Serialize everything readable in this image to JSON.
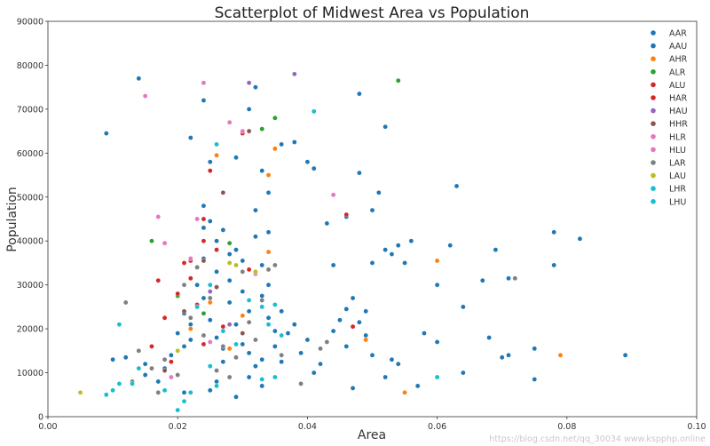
{
  "chart_data": {
    "type": "scatter",
    "title": "Scatterplot of Midwest Area vs Population",
    "xlabel": "Area",
    "ylabel": "Population",
    "xlim": [
      0.0,
      0.1
    ],
    "ylim": [
      0,
      90000
    ],
    "x_ticks": [
      "0.00",
      "0.02",
      "0.04",
      "0.06",
      "0.08",
      "0.10"
    ],
    "y_ticks": [
      "0",
      "10000",
      "20000",
      "30000",
      "40000",
      "50000",
      "60000",
      "70000",
      "80000",
      "90000"
    ],
    "grid": false,
    "legend_position": "top-right",
    "series": [
      {
        "name": "AAR",
        "color": "#1f77b4",
        "points": [
          [
            0.009,
            64500
          ],
          [
            0.014,
            77000
          ],
          [
            0.022,
            63500
          ],
          [
            0.024,
            72000
          ],
          [
            0.025,
            58000
          ],
          [
            0.029,
            59000
          ],
          [
            0.031,
            70000
          ],
          [
            0.032,
            75000
          ],
          [
            0.033,
            56000
          ],
          [
            0.034,
            51000
          ],
          [
            0.036,
            62000
          ],
          [
            0.038,
            62500
          ],
          [
            0.04,
            58000
          ],
          [
            0.041,
            56500
          ],
          [
            0.043,
            44000
          ],
          [
            0.044,
            34500
          ],
          [
            0.046,
            45500
          ],
          [
            0.047,
            27000
          ],
          [
            0.048,
            73500
          ],
          [
            0.048,
            55500
          ],
          [
            0.05,
            47000
          ],
          [
            0.05,
            35000
          ],
          [
            0.051,
            51000
          ],
          [
            0.052,
            66000
          ],
          [
            0.052,
            38000
          ],
          [
            0.053,
            37000
          ],
          [
            0.054,
            39000
          ],
          [
            0.055,
            35000
          ],
          [
            0.056,
            40000
          ],
          [
            0.058,
            19000
          ],
          [
            0.06,
            30000
          ],
          [
            0.06,
            17000
          ],
          [
            0.062,
            39000
          ],
          [
            0.063,
            52500
          ],
          [
            0.064,
            25000
          ],
          [
            0.067,
            31000
          ],
          [
            0.068,
            18000
          ],
          [
            0.069,
            38000
          ],
          [
            0.07,
            13500
          ],
          [
            0.071,
            31500
          ],
          [
            0.075,
            15500
          ],
          [
            0.075,
            8500
          ],
          [
            0.078,
            42000
          ],
          [
            0.078,
            34500
          ],
          [
            0.082,
            40500
          ],
          [
            0.089,
            14000
          ],
          [
            0.01,
            13000
          ],
          [
            0.012,
            13500
          ],
          [
            0.015,
            9500
          ],
          [
            0.018,
            11000
          ],
          [
            0.02,
            19000
          ],
          [
            0.021,
            16000
          ],
          [
            0.022,
            21000
          ],
          [
            0.023,
            25500
          ],
          [
            0.024,
            36000
          ],
          [
            0.024,
            48000
          ],
          [
            0.025,
            44500
          ],
          [
            0.026,
            33000
          ],
          [
            0.027,
            42500
          ],
          [
            0.028,
            31000
          ],
          [
            0.029,
            38000
          ],
          [
            0.03,
            28500
          ],
          [
            0.031,
            24000
          ],
          [
            0.032,
            41000
          ],
          [
            0.033,
            34500
          ],
          [
            0.034,
            30000
          ],
          [
            0.035,
            19500
          ],
          [
            0.036,
            24000
          ],
          [
            0.039,
            14500
          ],
          [
            0.042,
            12000
          ],
          [
            0.045,
            22000
          ],
          [
            0.048,
            21500
          ],
          [
            0.049,
            24000
          ],
          [
            0.052,
            9000
          ],
          [
            0.053,
            13000
          ],
          [
            0.057,
            7000
          ],
          [
            0.06,
            9000
          ],
          [
            0.064,
            10000
          ],
          [
            0.071,
            14000
          ],
          [
            0.047,
            6500
          ],
          [
            0.029,
            4500
          ],
          [
            0.026,
            8000
          ],
          [
            0.022,
            17500
          ],
          [
            0.023,
            34000
          ],
          [
            0.03,
            16500
          ],
          [
            0.033,
            13000
          ],
          [
            0.037,
            19000
          ],
          [
            0.041,
            10000
          ],
          [
            0.046,
            24500
          ],
          [
            0.05,
            14000
          ]
        ]
      },
      {
        "name": "AAU",
        "color": "#1f77b4",
        "points": [
          [
            0.015,
            12000
          ],
          [
            0.017,
            8000
          ],
          [
            0.019,
            14000
          ],
          [
            0.021,
            23500
          ],
          [
            0.023,
            30000
          ],
          [
            0.024,
            27000
          ],
          [
            0.025,
            22000
          ],
          [
            0.026,
            18000
          ],
          [
            0.027,
            15500
          ],
          [
            0.028,
            26000
          ],
          [
            0.029,
            21000
          ],
          [
            0.03,
            19000
          ],
          [
            0.031,
            14500
          ],
          [
            0.032,
            11500
          ],
          [
            0.033,
            27500
          ],
          [
            0.034,
            22500
          ],
          [
            0.035,
            16000
          ],
          [
            0.036,
            12500
          ],
          [
            0.038,
            21000
          ],
          [
            0.04,
            17500
          ],
          [
            0.044,
            19500
          ],
          [
            0.046,
            16000
          ],
          [
            0.049,
            18500
          ],
          [
            0.054,
            12000
          ],
          [
            0.024,
            43000
          ],
          [
            0.026,
            40000
          ],
          [
            0.028,
            37000
          ],
          [
            0.03,
            35500
          ],
          [
            0.032,
            47000
          ],
          [
            0.034,
            42000
          ],
          [
            0.021,
            5500
          ],
          [
            0.025,
            6000
          ],
          [
            0.027,
            12500
          ],
          [
            0.031,
            9000
          ],
          [
            0.033,
            7000
          ]
        ]
      },
      {
        "name": "AHR",
        "color": "#ff7f0e",
        "points": [
          [
            0.026,
            59500
          ],
          [
            0.035,
            61000
          ],
          [
            0.034,
            55000
          ],
          [
            0.034,
            37500
          ],
          [
            0.06,
            35500
          ],
          [
            0.049,
            17500
          ],
          [
            0.055,
            5500
          ],
          [
            0.079,
            14000
          ],
          [
            0.025,
            26000
          ],
          [
            0.03,
            23000
          ],
          [
            0.022,
            20000
          ],
          [
            0.028,
            15500
          ]
        ]
      },
      {
        "name": "ALR",
        "color": "#2ca02c",
        "points": [
          [
            0.033,
            65500
          ],
          [
            0.035,
            68000
          ],
          [
            0.054,
            76500
          ],
          [
            0.016,
            40000
          ],
          [
            0.02,
            27500
          ],
          [
            0.024,
            23500
          ],
          [
            0.028,
            39500
          ]
        ]
      },
      {
        "name": "ALU",
        "color": "#d62728",
        "points": [
          [
            0.025,
            56000
          ],
          [
            0.03,
            64500
          ],
          [
            0.024,
            40000
          ],
          [
            0.021,
            35000
          ],
          [
            0.022,
            31500
          ],
          [
            0.017,
            31000
          ],
          [
            0.018,
            22500
          ],
          [
            0.023,
            25500
          ],
          [
            0.026,
            38000
          ],
          [
            0.046,
            46000
          ],
          [
            0.047,
            20500
          ]
        ]
      },
      {
        "name": "HAR",
        "color": "#d62728",
        "points": [
          [
            0.024,
            45000
          ],
          [
            0.022,
            35500
          ],
          [
            0.02,
            28000
          ],
          [
            0.024,
            16500
          ],
          [
            0.016,
            16000
          ],
          [
            0.027,
            20500
          ],
          [
            0.031,
            33500
          ],
          [
            0.019,
            12500
          ]
        ]
      },
      {
        "name": "HAU",
        "color": "#9467bd",
        "points": [
          [
            0.031,
            76000
          ],
          [
            0.038,
            78000
          ],
          [
            0.025,
            28500
          ],
          [
            0.028,
            21000
          ]
        ]
      },
      {
        "name": "HHR",
        "color": "#8c564b",
        "points": [
          [
            0.031,
            65000
          ],
          [
            0.027,
            51000
          ],
          [
            0.024,
            35500
          ],
          [
            0.021,
            24000
          ],
          [
            0.026,
            29500
          ],
          [
            0.03,
            19000
          ],
          [
            0.018,
            10500
          ]
        ]
      },
      {
        "name": "HLR",
        "color": "#e377c2",
        "points": [
          [
            0.015,
            73000
          ],
          [
            0.024,
            76000
          ],
          [
            0.028,
            67000
          ],
          [
            0.017,
            45500
          ],
          [
            0.023,
            45000
          ],
          [
            0.044,
            50500
          ],
          [
            0.032,
            32500
          ]
        ]
      },
      {
        "name": "HLU",
        "color": "#e377c2",
        "points": [
          [
            0.018,
            39500
          ],
          [
            0.022,
            36000
          ],
          [
            0.03,
            65000
          ],
          [
            0.019,
            9000
          ],
          [
            0.025,
            17000
          ]
        ]
      },
      {
        "name": "LAR",
        "color": "#7f7f7f",
        "points": [
          [
            0.012,
            26000
          ],
          [
            0.014,
            15000
          ],
          [
            0.016,
            11000
          ],
          [
            0.018,
            13000
          ],
          [
            0.02,
            9500
          ],
          [
            0.021,
            30000
          ],
          [
            0.022,
            22500
          ],
          [
            0.023,
            34000
          ],
          [
            0.024,
            18500
          ],
          [
            0.025,
            27000
          ],
          [
            0.026,
            10500
          ],
          [
            0.027,
            16000
          ],
          [
            0.028,
            9000
          ],
          [
            0.029,
            13500
          ],
          [
            0.03,
            33000
          ],
          [
            0.031,
            21500
          ],
          [
            0.032,
            17500
          ],
          [
            0.033,
            26500
          ],
          [
            0.034,
            33500
          ],
          [
            0.035,
            34500
          ],
          [
            0.036,
            14000
          ],
          [
            0.039,
            7500
          ],
          [
            0.042,
            15500
          ],
          [
            0.043,
            17000
          ],
          [
            0.072,
            31500
          ],
          [
            0.017,
            5500
          ],
          [
            0.013,
            8000
          ]
        ]
      },
      {
        "name": "LAU",
        "color": "#bcbd22",
        "points": [
          [
            0.005,
            5500
          ],
          [
            0.02,
            15000
          ],
          [
            0.028,
            35000
          ],
          [
            0.029,
            34500
          ],
          [
            0.032,
            33000
          ]
        ]
      },
      {
        "name": "LHR",
        "color": "#17becf",
        "points": [
          [
            0.011,
            21000
          ],
          [
            0.013,
            7500
          ],
          [
            0.014,
            11000
          ],
          [
            0.02,
            1500
          ],
          [
            0.021,
            3500
          ],
          [
            0.022,
            5500
          ],
          [
            0.025,
            11500
          ],
          [
            0.026,
            7000
          ],
          [
            0.027,
            19500
          ],
          [
            0.029,
            16500
          ],
          [
            0.033,
            25000
          ],
          [
            0.034,
            21000
          ],
          [
            0.035,
            9000
          ],
          [
            0.041,
            69500
          ],
          [
            0.06,
            9000
          ],
          [
            0.01,
            6000
          ]
        ]
      },
      {
        "name": "LHU",
        "color": "#17becf",
        "points": [
          [
            0.026,
            62000
          ],
          [
            0.025,
            30000
          ],
          [
            0.023,
            25000
          ],
          [
            0.031,
            26500
          ],
          [
            0.033,
            8500
          ],
          [
            0.035,
            25500
          ],
          [
            0.036,
            18500
          ],
          [
            0.018,
            6000
          ],
          [
            0.009,
            5000
          ],
          [
            0.011,
            7500
          ]
        ]
      }
    ]
  },
  "watermark": "https://blog.csdn.net/qq_30034 www.kspphp.online"
}
